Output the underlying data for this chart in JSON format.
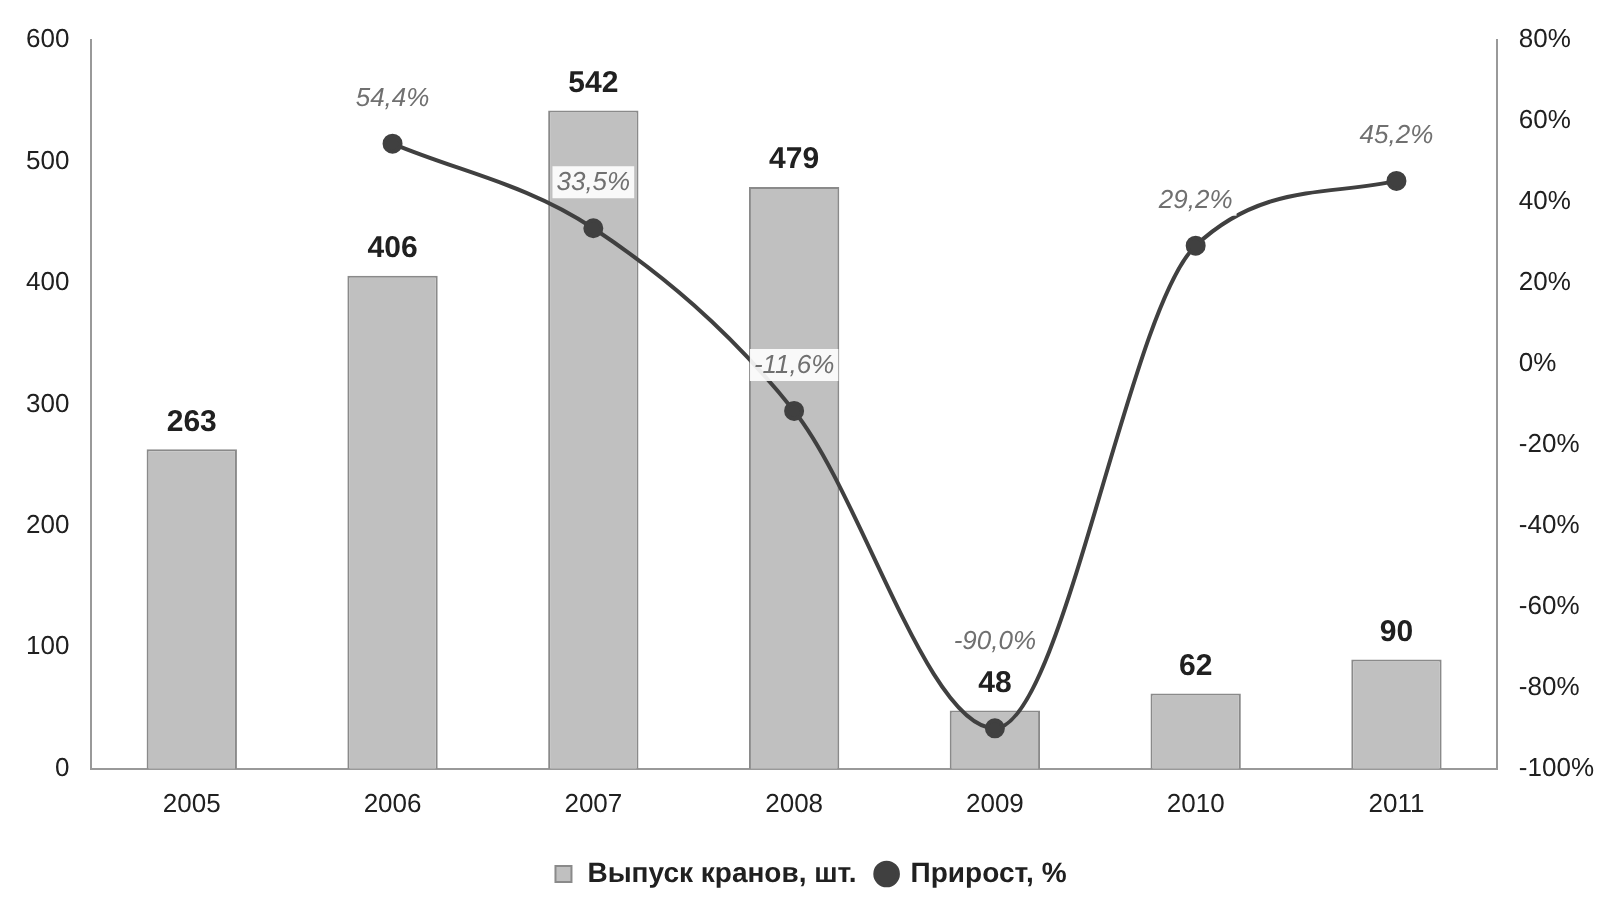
{
  "chart_data": {
    "type": "bar",
    "categories": [
      "2005",
      "2006",
      "2007",
      "2008",
      "2009",
      "2010",
      "2011"
    ],
    "series": [
      {
        "name": "Выпуск кранов, шт.",
        "color": "#c0c0c0",
        "values": [
          263,
          406,
          542,
          479,
          48,
          62,
          90
        ],
        "value_labels": [
          "263",
          "406",
          "542",
          "479",
          "48",
          "62",
          "90"
        ]
      },
      {
        "name": "Прирост, %",
        "type": "line",
        "axis": "y2",
        "color": "#404040",
        "values": [
          null,
          54.4,
          33.5,
          -11.6,
          -90.0,
          29.2,
          45.2
        ],
        "value_labels": [
          null,
          "54,4%",
          "33,5%",
          "-11,6%",
          "-90,0%",
          "29,2%",
          "45,2%"
        ]
      }
    ],
    "ylim": [
      0,
      600
    ],
    "yticks": [
      0,
      100,
      200,
      300,
      400,
      500,
      600
    ],
    "y2lim": [
      -100,
      80
    ],
    "y2ticks": [
      {
        "value": -100,
        "label": "-100%"
      },
      {
        "value": -80,
        "label": "-80%"
      },
      {
        "value": -60,
        "label": "-60%"
      },
      {
        "value": -40,
        "label": "-40%"
      },
      {
        "value": -20,
        "label": "-20%"
      },
      {
        "value": 0,
        "label": "0%"
      },
      {
        "value": 20,
        "label": "20%"
      },
      {
        "value": 40,
        "label": "40%"
      },
      {
        "value": 60,
        "label": "60%"
      },
      {
        "value": 80,
        "label": "80%"
      }
    ],
    "grid": false,
    "legend": "bottom",
    "marker": "circle",
    "line_style": "solid"
  }
}
